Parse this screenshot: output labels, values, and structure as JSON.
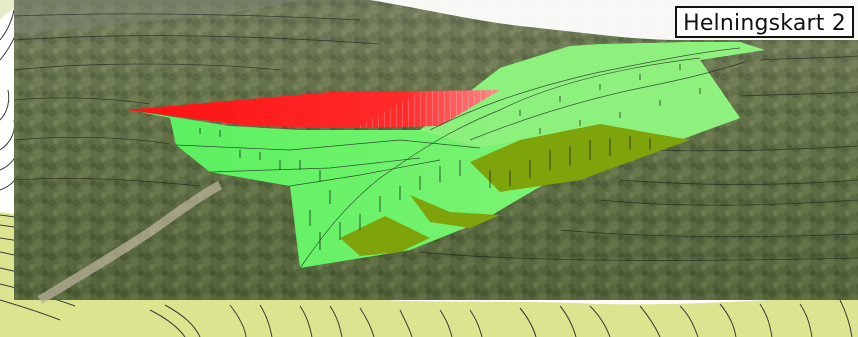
{
  "map": {
    "title": "Helningskart 2"
  },
  "legend_colors": {
    "steep_slope": "#ff1a1a",
    "moderate_slope": "#66ff66",
    "gentle_slope": "#99ff99",
    "terrace_slope": "#7fa30a",
    "contour_line": "#2b2b2b",
    "background_terrain": "#dbe58f"
  }
}
